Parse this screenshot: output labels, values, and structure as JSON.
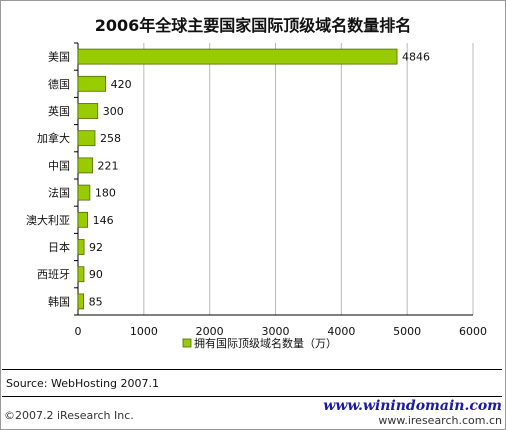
{
  "title": "2006年全球主要国家国际顶级域名数量排名",
  "source": "Source: WebHosting 2007.1",
  "copyright": "©2007.2 iResearch Inc.",
  "watermark": {
    "site": "www.winindomain.com",
    "url": "www.iresearch.com.cn"
  },
  "colors": {
    "bar": "#99cc00",
    "bar_stroke": "#4d6b00",
    "grid": "#b8b8b8"
  },
  "chart_data": {
    "type": "bar",
    "orientation": "horizontal",
    "title": "2006年全球主要国家国际顶级域名数量排名",
    "categories": [
      "美国",
      "德国",
      "英国",
      "加拿大",
      "中国",
      "法国",
      "澳大利亚",
      "日本",
      "西班牙",
      "韩国"
    ],
    "series": [
      {
        "name": "拥有国际顶级域名数量（万）",
        "values": [
          4846,
          420,
          300,
          258,
          221,
          180,
          146,
          92,
          90,
          85
        ]
      }
    ],
    "xlim": [
      0,
      6000
    ],
    "xticks": [
      "0",
      "1000",
      "2000",
      "3000",
      "4000",
      "5000",
      "6000"
    ],
    "grid": true,
    "legend_position": "bottom"
  }
}
